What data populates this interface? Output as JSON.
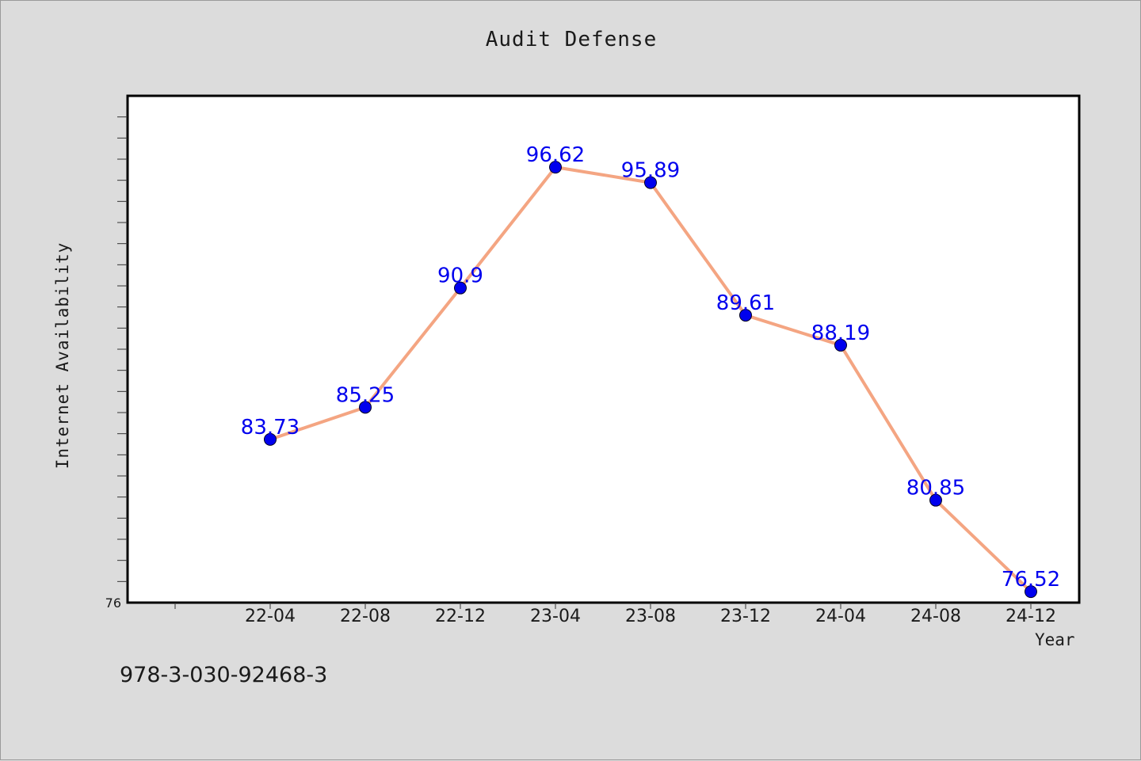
{
  "chart_data": {
    "type": "line",
    "title": "Audit Defense",
    "xlabel": "Year",
    "ylabel": "Internet Availability",
    "categories": [
      "22-04",
      "22-08",
      "22-12",
      "23-04",
      "23-08",
      "23-12",
      "24-04",
      "24-08",
      "24-12"
    ],
    "series": [
      {
        "values": [
          83.73,
          85.25,
          90.9,
          96.62,
          95.89,
          89.61,
          88.19,
          80.85,
          76.52
        ]
      }
    ],
    "data_labels": [
      "83.73",
      "85.25",
      "90.9",
      "96.62",
      "95.89",
      "89.61",
      "88.19",
      "80.85",
      "76.52"
    ],
    "ylim": [
      76,
      100
    ],
    "y_tick_label": "76",
    "grid": false,
    "line_color": "#f4a582",
    "marker_color": "#0000ee",
    "label_color": "#0000ee"
  },
  "footer": {
    "isbn": "978-3-030-92468-3"
  }
}
